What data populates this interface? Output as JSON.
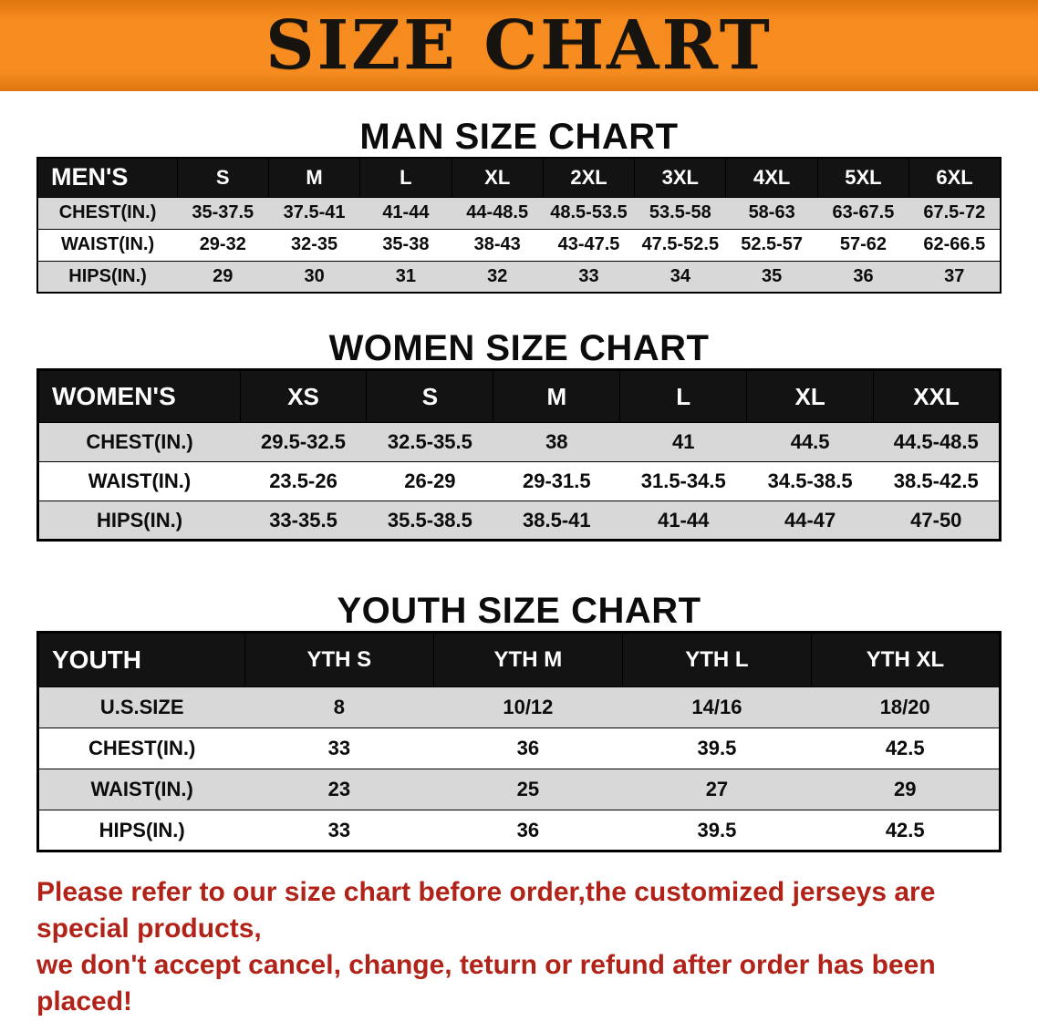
{
  "banner": {
    "title": "SIZE CHART"
  },
  "sections": [
    {
      "heading": "MAN SIZE CHART",
      "table": {
        "header": [
          "MEN'S",
          "S",
          "M",
          "L",
          "XL",
          "2XL",
          "3XL",
          "4XL",
          "5XL",
          "6XL"
        ],
        "rows": [
          [
            "CHEST(IN.)",
            "35-37.5",
            "37.5-41",
            "41-44",
            "44-48.5",
            "48.5-53.5",
            "53.5-58",
            "58-63",
            "63-67.5",
            "67.5-72"
          ],
          [
            "WAIST(IN.)",
            "29-32",
            "32-35",
            "35-38",
            "38-43",
            "43-47.5",
            "47.5-52.5",
            "52.5-57",
            "57-62",
            "62-66.5"
          ],
          [
            "HIPS(IN.)",
            "29",
            "30",
            "31",
            "32",
            "33",
            "34",
            "35",
            "36",
            "37"
          ]
        ]
      }
    },
    {
      "heading": "WOMEN SIZE CHART",
      "table": {
        "header": [
          "WOMEN'S",
          "XS",
          "S",
          "M",
          "L",
          "XL",
          "XXL"
        ],
        "rows": [
          [
            "CHEST(IN.)",
            "29.5-32.5",
            "32.5-35.5",
            "38",
            "41",
            "44.5",
            "44.5-48.5"
          ],
          [
            "WAIST(IN.)",
            "23.5-26",
            "26-29",
            "29-31.5",
            "31.5-34.5",
            "34.5-38.5",
            "38.5-42.5"
          ],
          [
            "HIPS(IN.)",
            "33-35.5",
            "35.5-38.5",
            "38.5-41",
            "41-44",
            "44-47",
            "47-50"
          ]
        ]
      }
    },
    {
      "heading": "YOUTH SIZE CHART",
      "table": {
        "header": [
          "YOUTH",
          "YTH S",
          "YTH M",
          "YTH L",
          "YTH XL"
        ],
        "rows": [
          [
            "U.S.SIZE",
            "8",
            "10/12",
            "14/16",
            "18/20"
          ],
          [
            "CHEST(IN.)",
            "33",
            "36",
            "39.5",
            "42.5"
          ],
          [
            "WAIST(IN.)",
            "23",
            "25",
            "27",
            "29"
          ],
          [
            "HIPS(IN.)",
            "33",
            "36",
            "39.5",
            "42.5"
          ]
        ]
      }
    }
  ],
  "disclaimer": {
    "line1": "Please refer to our size chart before order,the customized jerseys are special products,",
    "line2": "we don't accept cancel, change, teturn or refund after order has been placed!"
  },
  "colors": {
    "banner_bg": "#f68b1f",
    "table_header_bg": "#131313",
    "row_alt_bg": "#d8d8d8",
    "disclaimer_text": "#b12318"
  }
}
